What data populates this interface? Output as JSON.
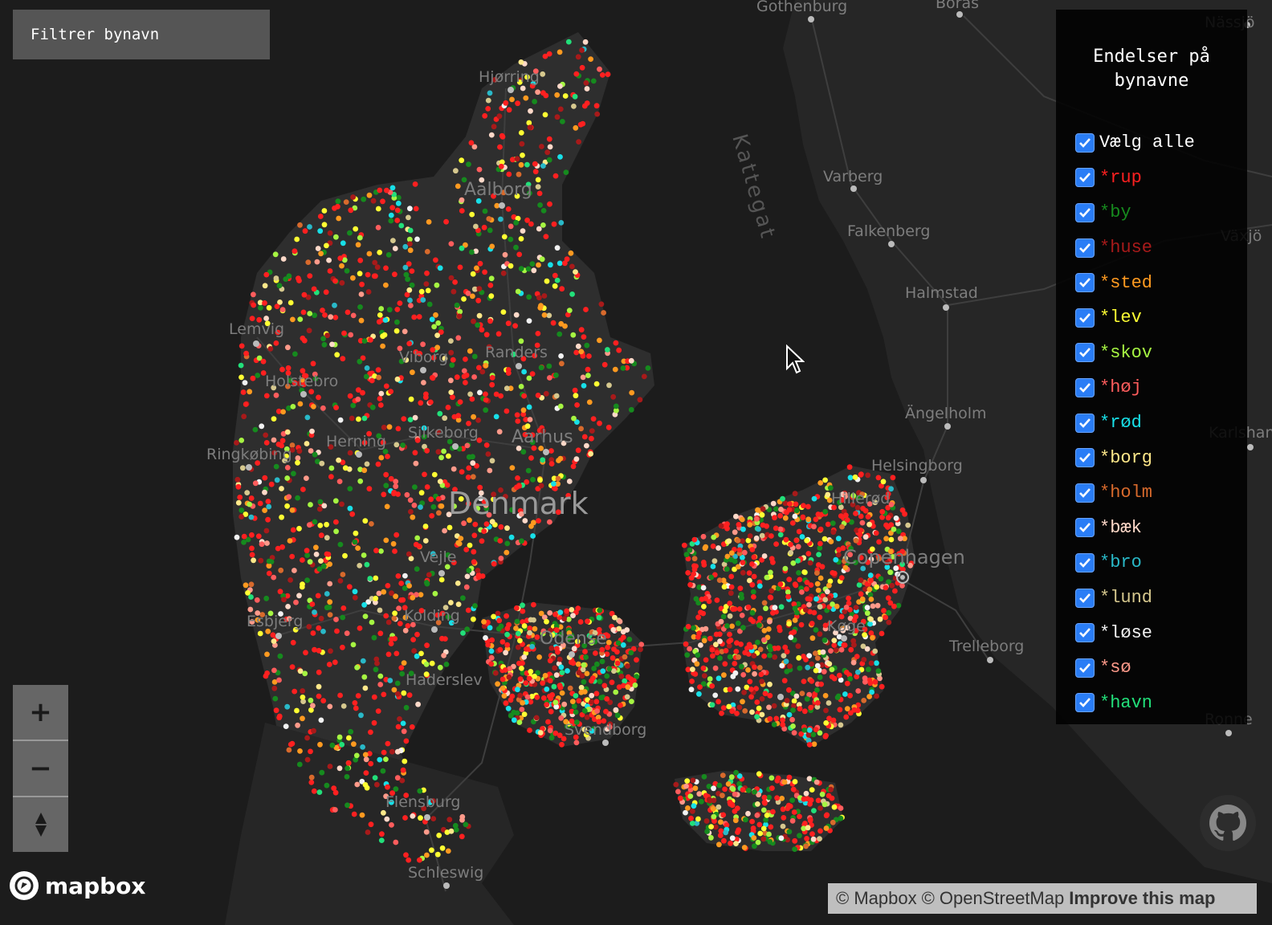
{
  "filter": {
    "placeholder": "Filtrer bynavn"
  },
  "legend": {
    "title": "Endelser på bynavne",
    "select_all": {
      "label": "Vælg alle",
      "checked": true
    },
    "items": [
      {
        "label": "*rup",
        "color": "#ff2020",
        "checked": true
      },
      {
        "label": "*by",
        "color": "#168a1e",
        "checked": true
      },
      {
        "label": "*huse",
        "color": "#a81a1a",
        "checked": true
      },
      {
        "label": "*sted",
        "color": "#ff9a20",
        "checked": true
      },
      {
        "label": "*lev",
        "color": "#ffff33",
        "checked": true
      },
      {
        "label": "*skov",
        "color": "#a6f542",
        "checked": true
      },
      {
        "label": "*høj",
        "color": "#ff5d5d",
        "checked": true
      },
      {
        "label": "*rød",
        "color": "#18e0e8",
        "checked": true
      },
      {
        "label": "*borg",
        "color": "#ffe88a",
        "checked": true
      },
      {
        "label": "*holm",
        "color": "#d86a2c",
        "checked": true
      },
      {
        "label": "*bæk",
        "color": "#ffd9c9",
        "checked": true
      },
      {
        "label": "*bro",
        "color": "#29b9c8",
        "checked": true
      },
      {
        "label": "*lund",
        "color": "#d6c88e",
        "checked": true
      },
      {
        "label": "*løse",
        "color": "#f2f2f2",
        "checked": true
      },
      {
        "label": "*sø",
        "color": "#ff9a8a",
        "checked": true
      },
      {
        "label": "*havn",
        "color": "#22e07a",
        "checked": true
      }
    ]
  },
  "map": {
    "country_label": "Denmark",
    "sea_label": "Kattegat",
    "cities": [
      "Gothenburg",
      "Borås",
      "Varberg",
      "Falkenberg",
      "Halmstad",
      "Ängelholm",
      "Helsingborg",
      "Copenhagen",
      "Trelleborg",
      "Hjørring",
      "Aalborg",
      "Lemvig",
      "Holstebro",
      "Viborg",
      "Randers",
      "Ringkøbing",
      "Herning",
      "Silkeborg",
      "Aarhus",
      "Esbjerg",
      "Kolding",
      "Vejle",
      "Odense",
      "Svendborg",
      "Flensburg",
      "Schleswig",
      "Haderslev",
      "Hillerød",
      "Køge",
      "Växjö",
      "Karlshamn",
      "Nässjö",
      "Ronne"
    ]
  },
  "zoom": {
    "in": "+",
    "out": "−"
  },
  "branding": {
    "logo": "mapbox"
  },
  "attribution": {
    "mapbox": "© Mapbox",
    "osm": "© OpenStreetMap",
    "improve": "Improve this map"
  },
  "icons": {
    "github": "github-icon",
    "compass": "compass-icon",
    "cursor": "cursor-icon"
  }
}
